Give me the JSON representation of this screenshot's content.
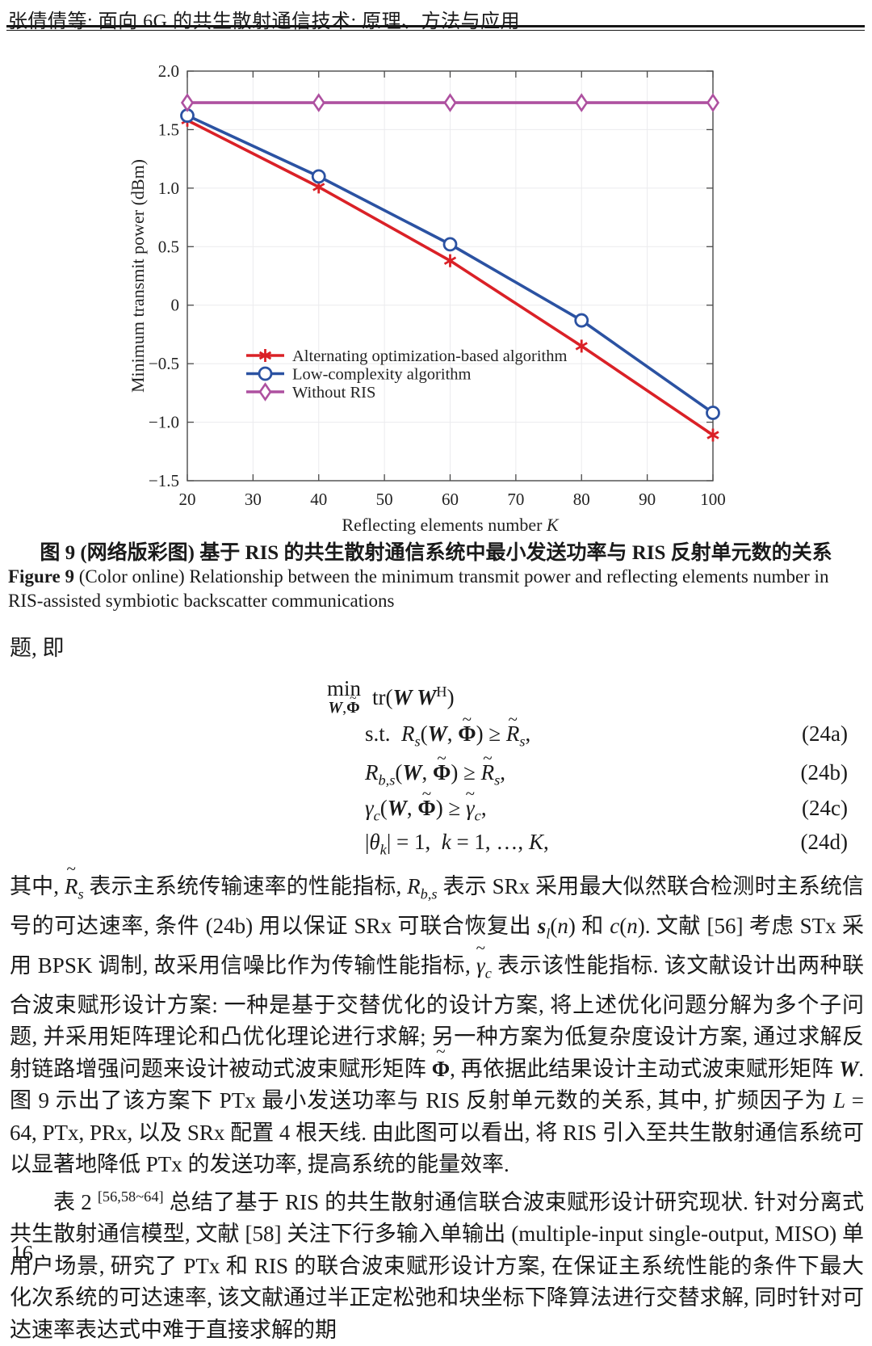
{
  "header": {
    "running_title": "张倩倩等: 面向 6G 的共生散射通信技术: 原理、方法与应用"
  },
  "figure": {
    "caption_zh": "图 9  (网络版彩图) 基于 RIS 的共生散射通信系统中最小发送功率与 RIS 反射单元数的关系",
    "caption_en_label": "Figure 9",
    "caption_en": "  (Color online) Relationship between the minimum transmit power and reflecting elements number in RIS-assisted symbiotic backscatter communications"
  },
  "chart_data": {
    "type": "line",
    "title": "",
    "xlabel": "Reflecting elements number K",
    "xlabel_parts": [
      {
        "text": "Reflecting elements number ",
        "italic": false
      },
      {
        "text": "K",
        "italic": true
      }
    ],
    "ylabel": "Minimum transmit power (dBm)",
    "xlim": [
      20,
      100
    ],
    "ylim": [
      -1.5,
      2.0
    ],
    "xticks": [
      20,
      30,
      40,
      50,
      60,
      70,
      80,
      90,
      100
    ],
    "xticklabels": [
      "20",
      "30",
      "40",
      "50",
      "60",
      "70",
      "80",
      "90",
      "100"
    ],
    "yticks": [
      -1.5,
      -1.0,
      -0.5,
      0,
      0.5,
      1.0,
      1.5,
      2.0
    ],
    "yticklabels": [
      "−1.5",
      "−1.0",
      "−0.5",
      "0",
      "0.5",
      "1.0",
      "1.5",
      "2.0"
    ],
    "grid": true,
    "legend_position": "inside-left-middle",
    "x": [
      20,
      40,
      60,
      80,
      100
    ],
    "series": [
      {
        "name": "Alternating optimization-based algorithm",
        "color": "#da2127",
        "marker": "asterisk",
        "values": [
          1.58,
          1.01,
          0.38,
          -0.35,
          -1.11
        ]
      },
      {
        "name": "Low-complexity algorithm",
        "color": "#2b52a2",
        "marker": "circle",
        "values": [
          1.62,
          1.1,
          0.52,
          -0.13,
          -0.92
        ]
      },
      {
        "name": "Without RIS",
        "color": "#ae51a0",
        "marker": "diamond",
        "values": [
          1.73,
          1.73,
          1.73,
          1.73,
          1.73
        ]
      }
    ]
  },
  "intro_line": "题, 即",
  "equations": {
    "objective_html": "<span class='mstack'><span class='mword'>min</span><span class='msub'><b><i>W</i></b>,<span class='ov'><b>Φ</b><span class='tld'>~</span></span></span></span><span class='mbody'>tr(<b><i>W W</i></b><sup>H</sup>)</span>",
    "rows": [
      {
        "expr_html": "s.t.&nbsp;&nbsp;<i>R</i><sub><i>s</i></sub>(<b><i>W</i></b>, <span class='ov'><b>Φ</b><span class='tld'>~</span></span>) &#x2265; <span class='ov'><i>R</i><span class='tld'>~</span></span><sub><i>s</i></sub>,",
        "number": "(24a)"
      },
      {
        "expr_html": "<i>R</i><sub><i>b,s</i></sub>(<b><i>W</i></b>, <span class='ov'><b>Φ</b><span class='tld'>~</span></span>) &#x2265; <span class='ov'><i>R</i><span class='tld'>~</span></span><sub><i>s</i></sub>,",
        "number": "(24b)"
      },
      {
        "expr_html": "<i>γ</i><sub><i>c</i></sub>(<b><i>W</i></b>, <span class='ov'><b>Φ</b><span class='tld'>~</span></span>) &#x2265; <span class='ov'><i>γ</i><span class='tld'>~</span></span><sub><i>c</i></sub>,",
        "number": "(24c)"
      },
      {
        "expr_html": "|<i>θ</i><sub><i>k</i></sub>| = 1,&nbsp;&nbsp;<i>k</i> = 1, …, <i>K</i>,",
        "number": "(24d)"
      }
    ]
  },
  "paragraphs": [
    {
      "indent": false,
      "html": "其中, <span class='ov'><i>R</i><span class='tld'>~</span></span><sub><i>s</i></sub> 表示主系统传输速率的性能指标, <i>R</i><sub><i>b,s</i></sub> 表示 SRx 采用最大似然联合检测时主系统信号的可达速率, 条件 (24b) 用以保证 SRx 可联合恢复出 <b><i>s</i></b><sub><i>l</i></sub>(<i>n</i>) 和 <i>c</i>(<i>n</i>). 文献 [56] 考虑 STx 采用 BPSK 调制, 故采用信噪比作为传输性能指标, <span class='ov'><i>γ</i><span class='tld'>~</span></span><sub><i>c</i></sub> 表示该性能指标. 该文献设计出两种联合波束赋形设计方案: 一种是基于交替优化的设计方案, 将上述优化问题分解为多个子问题, 并采用矩阵理论和凸优化理论进行求解; 另一种方案为低复杂度设计方案, 通过求解反射链路增强问题来设计被动式波束赋形矩阵 <span class='ov'><b>Φ</b><span class='tld'>~</span></span>, 再依据此结果设计主动式波束赋形矩阵 <b><i>W</i></b>. 图 9 示出了该方案下 PTx 最小发送功率与 RIS 反射单元数的关系, 其中, 扩频因子为 <i>L</i> = 64, PTx, PRx, 以及 SRx 配置 4 根天线. 由此图可以看出, 将 RIS 引入至共生散射通信系统可以显著地降低 PTx 的发送功率, 提高系统的能量效率."
    },
    {
      "indent": true,
      "html": "表 2 <sup>[56,58~64]</sup> 总结了基于 RIS 的共生散射通信联合波束赋形设计研究现状. 针对分离式共生散射通信模型, 文献 [58] 关注下行多输入单输出 (multiple-input single-output, MISO) 单用户场景, 研究了 PTx 和 RIS 的联合波束赋形设计方案, 在保证主系统性能的条件下最大化次系统的可达速率, 该文献通过半正定松弛和块坐标下降算法进行交替求解, 同时针对可达速率表达式中难于直接求解的期"
    }
  ],
  "page_number": "16"
}
